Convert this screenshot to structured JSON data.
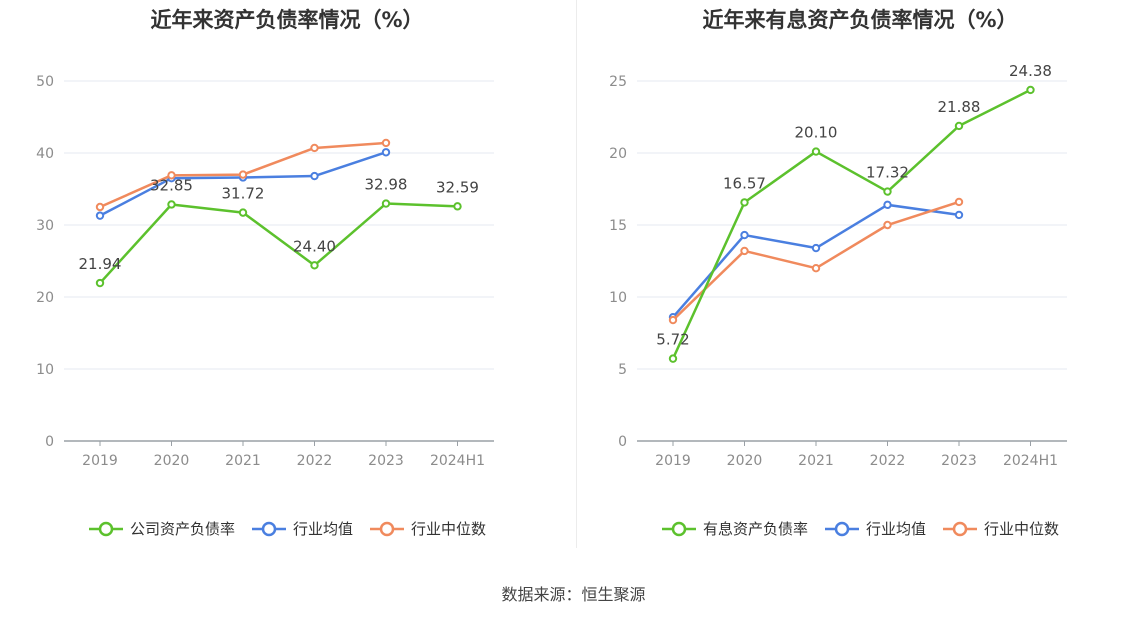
{
  "source": "数据来源：恒生聚源",
  "colors": {
    "company": "#5cc12d",
    "avg": "#4a7fe0",
    "median": "#f08a5d",
    "grid": "#e6e9f0",
    "axis": "#9aa0a6",
    "tick_text": "#8c8c8c",
    "label_text": "#444444"
  },
  "chart_data": [
    {
      "type": "line",
      "title": "近年来资产负债率情况（%）",
      "categories": [
        "2019",
        "2020",
        "2021",
        "2022",
        "2023",
        "2024H1"
      ],
      "ylim": [
        0,
        50
      ],
      "yticks": [
        0,
        10,
        20,
        30,
        40,
        50
      ],
      "grid": true,
      "legend_position": "bottom",
      "series": [
        {
          "name": "公司资产负债率",
          "key": "company",
          "values": [
            21.94,
            32.85,
            31.72,
            24.4,
            32.98,
            32.59
          ],
          "labels": [
            "21.94",
            "32.85",
            "31.72",
            "24.40",
            "32.98",
            "32.59"
          ]
        },
        {
          "name": "行业均值",
          "key": "avg",
          "values": [
            31.3,
            36.5,
            36.6,
            36.8,
            40.1,
            null
          ]
        },
        {
          "name": "行业中位数",
          "key": "median",
          "values": [
            32.5,
            36.9,
            37.0,
            40.7,
            41.4,
            null
          ]
        }
      ]
    },
    {
      "type": "line",
      "title": "近年来有息资产负债率情况（%）",
      "categories": [
        "2019",
        "2020",
        "2021",
        "2022",
        "2023",
        "2024H1"
      ],
      "ylim": [
        0,
        25
      ],
      "yticks": [
        0,
        5,
        10,
        15,
        20,
        25
      ],
      "grid": true,
      "legend_position": "bottom",
      "series": [
        {
          "name": "有息资产负债率",
          "key": "company",
          "values": [
            5.72,
            16.57,
            20.1,
            17.32,
            21.88,
            24.38
          ],
          "labels": [
            "5.72",
            "16.57",
            "20.10",
            "17.32",
            "21.88",
            "24.38"
          ]
        },
        {
          "name": "行业均值",
          "key": "avg",
          "values": [
            8.6,
            14.3,
            13.4,
            16.4,
            15.7,
            null
          ]
        },
        {
          "name": "行业中位数",
          "key": "median",
          "values": [
            8.4,
            13.2,
            12.0,
            15.0,
            16.6,
            null
          ]
        }
      ]
    }
  ]
}
